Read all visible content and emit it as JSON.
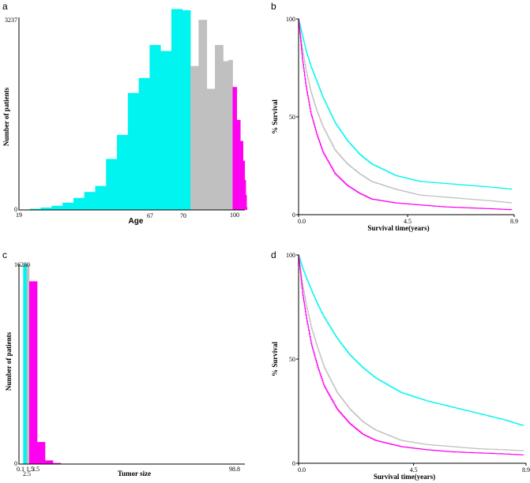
{
  "colors": {
    "cyan": "#00f5f0",
    "gray": "#c0c0c0",
    "magenta": "#ff00f0",
    "axis": "#000000"
  },
  "chart_data": [
    {
      "panel": "a",
      "type": "bar",
      "xlabel": "Age",
      "ylabel": "Number of patients",
      "xlim": [
        19,
        102
      ],
      "ylim": [
        0,
        3237
      ],
      "x_ticks": [
        "19",
        "67",
        "70",
        "100"
      ],
      "y_ticks": [
        "0",
        "3237"
      ],
      "bars": [
        {
          "x0": 23,
          "x1": 27,
          "value": 20,
          "group": "cyan"
        },
        {
          "x0": 27,
          "x1": 31,
          "value": 40,
          "group": "cyan"
        },
        {
          "x0": 31,
          "x1": 35,
          "value": 70,
          "group": "cyan"
        },
        {
          "x0": 35,
          "x1": 39,
          "value": 120,
          "group": "cyan"
        },
        {
          "x0": 39,
          "x1": 43,
          "value": 200,
          "group": "cyan"
        },
        {
          "x0": 43,
          "x1": 47,
          "value": 300,
          "group": "cyan"
        },
        {
          "x0": 47,
          "x1": 51,
          "value": 400,
          "group": "cyan"
        },
        {
          "x0": 51,
          "x1": 55,
          "value": 850,
          "group": "cyan"
        },
        {
          "x0": 55,
          "x1": 59,
          "value": 1250,
          "group": "cyan"
        },
        {
          "x0": 59,
          "x1": 63,
          "value": 1950,
          "group": "cyan"
        },
        {
          "x0": 63,
          "x1": 67,
          "value": 2200,
          "group": "cyan"
        },
        {
          "x0": 67,
          "x1": 71,
          "value": 2750,
          "group": "cyan"
        },
        {
          "x0": 71,
          "x1": 75,
          "value": 2650,
          "group": "cyan"
        },
        {
          "x0": 75,
          "x1": 79,
          "value": 3350,
          "group": "cyan"
        },
        {
          "x0": 79,
          "x1": 82,
          "value": 3330,
          "group": "cyan"
        },
        {
          "x0": 82,
          "x1": 85,
          "value": 2400,
          "group": "gray"
        },
        {
          "x0": 85,
          "x1": 88,
          "value": 3170,
          "group": "gray"
        },
        {
          "x0": 88,
          "x1": 91,
          "value": 2020,
          "group": "gray"
        },
        {
          "x0": 91,
          "x1": 94,
          "value": 2750,
          "group": "gray"
        },
        {
          "x0": 94,
          "x1": 96,
          "value": 2480,
          "group": "gray"
        },
        {
          "x0": 96,
          "x1": 97.5,
          "value": 2500,
          "group": "gray"
        },
        {
          "x0": 97.5,
          "x1": 99,
          "value": 2050,
          "group": "magenta"
        },
        {
          "x0": 99,
          "x1": 100.3,
          "value": 1500,
          "group": "magenta"
        },
        {
          "x0": 100.3,
          "x1": 101.3,
          "value": 1150,
          "group": "magenta"
        },
        {
          "x0": 101.3,
          "x1": 101.9,
          "value": 820,
          "group": "magenta"
        },
        {
          "x0": 101.9,
          "x1": 102.3,
          "value": 500,
          "group": "magenta"
        },
        {
          "x0": 102.3,
          "x1": 102.6,
          "value": 250,
          "group": "magenta"
        },
        {
          "x0": 102.6,
          "x1": 102.8,
          "value": 50,
          "group": "magenta"
        }
      ]
    },
    {
      "panel": "b",
      "type": "line",
      "xlabel": "Survival time(years)",
      "ylabel": "% Survival",
      "xlim": [
        0,
        8.9
      ],
      "ylim": [
        0,
        100
      ],
      "x_ticks": [
        "0.0",
        "4.5",
        "8.9"
      ],
      "y_ticks": [
        "0",
        "50",
        "100"
      ],
      "series": [
        {
          "color": "cyan",
          "x": [
            0,
            0.15,
            0.3,
            0.5,
            0.75,
            1,
            1.5,
            2,
            2.5,
            3,
            4,
            5,
            6,
            7,
            8,
            8.8
          ],
          "y": [
            100,
            92,
            84,
            76,
            68,
            60,
            47,
            38,
            31,
            26,
            20,
            17,
            16,
            15,
            14,
            13
          ]
        },
        {
          "color": "gray",
          "x": [
            0,
            0.15,
            0.3,
            0.5,
            0.75,
            1,
            1.5,
            2,
            2.5,
            3,
            4,
            5,
            6,
            7,
            8,
            8.8
          ],
          "y": [
            100,
            85,
            74,
            63,
            53,
            45,
            33,
            26,
            21,
            17,
            13,
            10,
            9,
            8,
            7,
            6
          ]
        },
        {
          "color": "magenta",
          "x": [
            0,
            0.15,
            0.3,
            0.5,
            0.75,
            1,
            1.5,
            2,
            2.5,
            3,
            4,
            5,
            6,
            7,
            8,
            8.8
          ],
          "y": [
            100,
            80,
            66,
            52,
            41,
            32,
            21,
            15,
            11,
            8,
            6,
            5,
            4,
            3.5,
            3,
            2.5
          ]
        }
      ]
    },
    {
      "panel": "c",
      "type": "bar",
      "xlabel": "Tumor size",
      "ylabel": "Number of patients",
      "xlim": [
        0,
        98.8
      ],
      "ylim": [
        0,
        16280
      ],
      "x_ticks": [
        "0.1",
        "2.5",
        "1.5",
        "3.5",
        "98.8"
      ],
      "y_ticks": [
        "0",
        "16280"
      ],
      "bars": [
        {
          "x0": 0.1,
          "x1": 1.5,
          "value": 16280,
          "group": "cyan"
        },
        {
          "x0": 1.5,
          "x1": 2.5,
          "value": 16280,
          "group": "gray"
        },
        {
          "x0": 2.5,
          "x1": 5.0,
          "value": 14900,
          "group": "magenta"
        },
        {
          "x0": 5.0,
          "x1": 7.5,
          "value": 1800,
          "group": "magenta"
        },
        {
          "x0": 7.5,
          "x1": 10.0,
          "value": 300,
          "group": "magenta"
        },
        {
          "x0": 10.0,
          "x1": 12.5,
          "value": 90,
          "group": "magenta"
        },
        {
          "x0": 12.5,
          "x1": 15.0,
          "value": 30,
          "group": "magenta"
        }
      ]
    },
    {
      "panel": "d",
      "type": "line",
      "xlabel": "Survival time(years)",
      "ylabel": "% Survival",
      "xlim": [
        0,
        8.9
      ],
      "ylim": [
        0,
        100
      ],
      "x_ticks": [
        "0.0",
        "4.5",
        "8.9"
      ],
      "y_ticks": [
        "0",
        "50",
        "100"
      ],
      "series": [
        {
          "color": "cyan",
          "x": [
            0,
            0.15,
            0.3,
            0.5,
            0.75,
            1,
            1.5,
            2,
            2.5,
            3,
            4,
            5,
            6,
            7,
            8,
            8.8
          ],
          "y": [
            100,
            94,
            89,
            83,
            76,
            70,
            60,
            52,
            46,
            41,
            34,
            30,
            27,
            24,
            21,
            18
          ]
        },
        {
          "color": "gray",
          "x": [
            0,
            0.15,
            0.3,
            0.5,
            0.75,
            1,
            1.5,
            2,
            2.5,
            3,
            4,
            5,
            6,
            7,
            8,
            8.8
          ],
          "y": [
            100,
            86,
            76,
            65,
            55,
            46,
            34,
            26,
            20,
            16,
            11,
            9,
            8,
            7,
            6.5,
            6
          ]
        },
        {
          "color": "magenta",
          "x": [
            0,
            0.15,
            0.3,
            0.5,
            0.75,
            1,
            1.5,
            2,
            2.5,
            3,
            4,
            5,
            6,
            7,
            8,
            8.8
          ],
          "y": [
            100,
            82,
            70,
            57,
            46,
            37,
            26,
            19,
            14,
            11,
            8,
            6.5,
            5.5,
            5,
            4.5,
            4
          ]
        }
      ]
    }
  ]
}
